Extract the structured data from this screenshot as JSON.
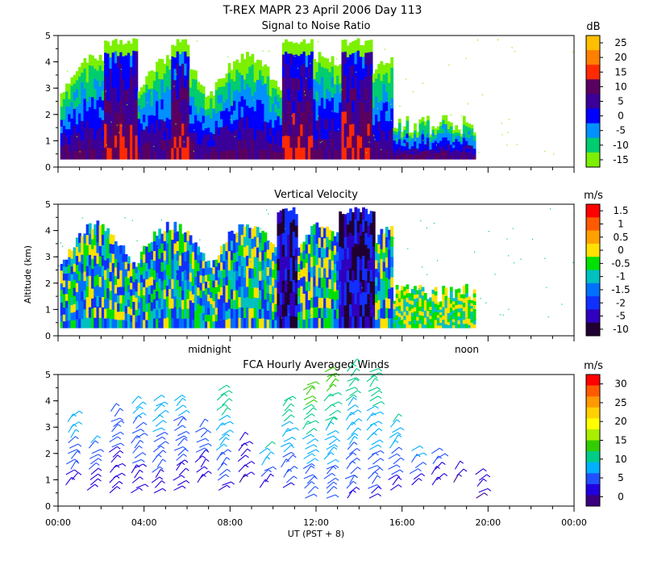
{
  "header": {
    "title_line": "T-REX  MAPR 23 April 2006 Day 113",
    "x_axis_label": "UT  (PST + 8)",
    "y_axis_label": "Altitude (km)",
    "time_markers": [
      "midnight",
      "noon"
    ]
  },
  "chart_data": [
    {
      "type": "heatmap",
      "title": "Signal to Noise Ratio",
      "colorbar_unit": "dB",
      "colorbar_ticks": [
        25,
        20,
        15,
        10,
        5,
        0,
        -5,
        -10,
        -15
      ],
      "colorbar_colors": [
        "#ffbf00",
        "#ff7f00",
        "#ff2a00",
        "#5a0060",
        "#3a0099",
        "#0000ff",
        "#0090ff",
        "#00cc70",
        "#7cf000"
      ],
      "ylim": [
        0,
        5
      ],
      "yticks": [
        0,
        1,
        2,
        3,
        4,
        5
      ],
      "xlim_hours": [
        0,
        24
      ],
      "data_extent": {
        "x_hours": [
          0.1,
          19.3
        ],
        "y_km": [
          0.3,
          4.9
        ]
      },
      "intense_columns_hours": [
        2.5,
        3.2,
        5.6,
        10.8,
        11.4,
        13.6,
        14.1
      ]
    },
    {
      "type": "heatmap",
      "title": "Vertical Velocity",
      "colorbar_unit": "m/s",
      "colorbar_ticks": [
        "1.5",
        "1",
        "0.5",
        "0",
        "-0.5",
        "-1",
        "-1.5",
        "-2",
        "-5",
        "-10"
      ],
      "colorbar_colors": [
        "#ff0000",
        "#ff5a00",
        "#ffa000",
        "#ffe000",
        "#00e000",
        "#00c0c0",
        "#0070ff",
        "#1030ff",
        "#3000c0",
        "#200030"
      ],
      "ylim": [
        0,
        5
      ],
      "yticks": [
        0,
        1,
        2,
        3,
        4,
        5
      ],
      "xlim_hours": [
        0,
        24
      ],
      "data_extent": {
        "x_hours": [
          0.1,
          19.3
        ],
        "y_km": [
          0.3,
          4.9
        ]
      },
      "strong_downdraft_hours": [
        10.6,
        13.5,
        14.2
      ]
    },
    {
      "type": "scatter",
      "title": "FCA Hourly Averaged Winds",
      "colorbar_unit": "m/s",
      "colorbar_ticks": [
        30,
        25,
        20,
        15,
        10,
        5,
        0
      ],
      "colorbar_colors": [
        "#ff0000",
        "#ff5a00",
        "#ff9900",
        "#ffd000",
        "#ffff00",
        "#aaee00",
        "#33cc00",
        "#00cc88",
        "#00b0ff",
        "#2050ff",
        "#2000e0",
        "#3a0080"
      ],
      "ylim": [
        0,
        5
      ],
      "yticks": [
        0,
        1,
        2,
        3,
        4,
        5
      ],
      "xlim_hours": [
        0,
        24
      ],
      "xtick_labels": [
        "00:00",
        "04:00",
        "08:00",
        "12:00",
        "16:00",
        "20:00",
        "00:00"
      ],
      "hours": [
        0.5,
        1.5,
        2.5,
        3.5,
        4.5,
        5.5,
        6.5,
        7.5,
        8.5,
        9.5,
        10.5,
        11.5,
        12.5,
        13.5,
        14.5,
        15.5,
        16.5,
        17.5,
        18.5,
        19.5
      ],
      "top_km": [
        3.4,
        2.4,
        3.6,
        3.9,
        4.0,
        4.0,
        3.0,
        4.4,
        2.5,
        2.2,
        4.0,
        4.6,
        5.1,
        5.3,
        5.1,
        3.2,
        2.1,
        2.0,
        1.4,
        1.2
      ],
      "bottom_km": [
        0.8,
        0.6,
        0.5,
        0.5,
        0.5,
        0.6,
        0.9,
        0.6,
        0.9,
        0.7,
        0.7,
        0.3,
        0.3,
        0.3,
        0.3,
        0.6,
        0.8,
        0.8,
        0.9,
        0.3
      ],
      "speed_top_ms": [
        9,
        7,
        6,
        8,
        9,
        8,
        6,
        12,
        4,
        10,
        12,
        14,
        14,
        12,
        12,
        10,
        8,
        6,
        4,
        4
      ]
    }
  ]
}
